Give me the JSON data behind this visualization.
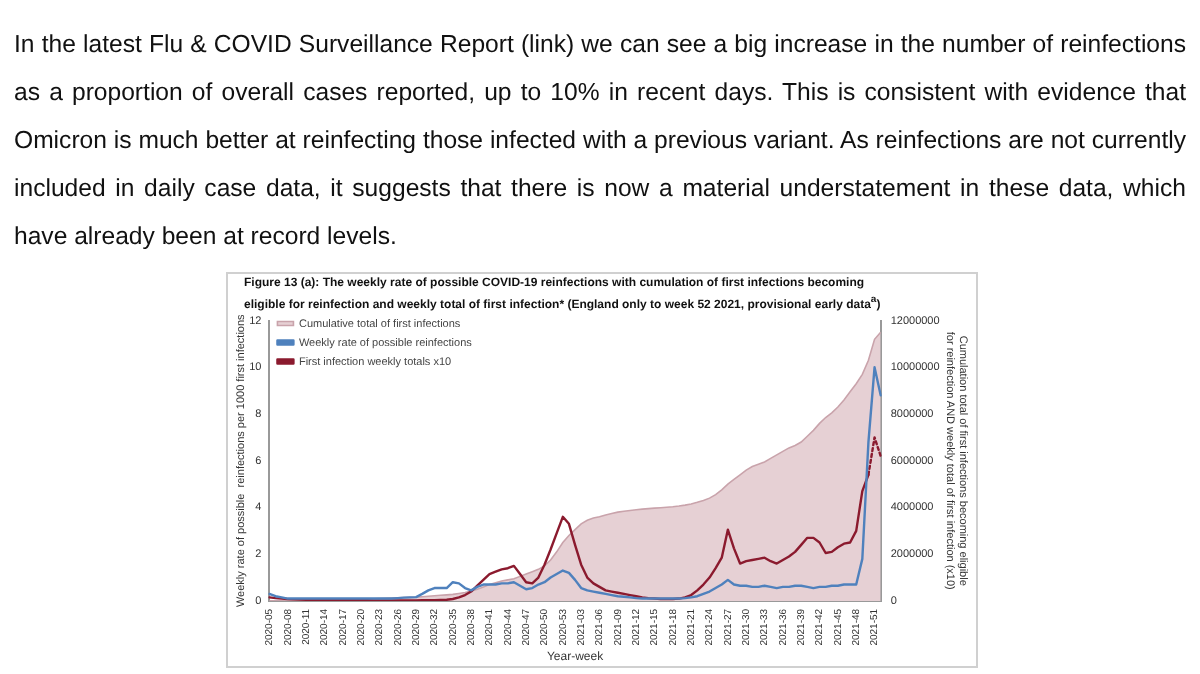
{
  "chart_data": {
    "type": "line",
    "title": "Figure 13 (a): The weekly rate of possible COVID-19 reinfections with cumulation of first infections becoming eligible for reinfection and weekly total of first infection* (England only to week 52 2021, provisional early data$^{a}$)",
    "annotations": [
      "In the latest Flu & COVID Surveillance Report (link) we can see a big increase in the number of reinfections as a proportion of overall cases reported, up to 10% in recent days. This is consistent with evidence that Omicron is much better at reinfecting those infected with a previous variant. As reinfections are not currently included in daily case data, it suggests that there is now a material understatement in these data, which have already been at record levels."
    ],
    "xlabel": "Year-week",
    "ylabel": "Weekly rate of possible  reinfections per 1000 first infections",
    "y2label": "Cumulation total of first infections becoming eligible for reinfection AND weekly total of first infection (x10)",
    "categories": [
      "2020-05",
      null,
      null,
      "2020-08",
      null,
      null,
      "2020-11",
      null,
      null,
      "2020-14",
      null,
      null,
      "2020-17",
      null,
      null,
      "2020-20",
      null,
      null,
      "2020-23",
      null,
      null,
      "2020-26",
      null,
      null,
      "2020-29",
      null,
      null,
      "2020-32",
      null,
      null,
      "2020-35",
      null,
      null,
      "2020-38",
      null,
      null,
      "2020-41",
      null,
      null,
      "2020-44",
      null,
      null,
      "2020-47",
      null,
      null,
      "2020-50",
      null,
      null,
      "2020-53",
      null,
      null,
      "2021-03",
      null,
      null,
      "2021-06",
      null,
      null,
      "2021-09",
      null,
      null,
      "2021-12",
      null,
      null,
      "2021-15",
      null,
      null,
      "2021-18",
      null,
      null,
      "2021-21",
      null,
      null,
      "2021-24",
      null,
      null,
      "2021-27",
      null,
      null,
      "2021-30",
      null,
      null,
      "2021-33",
      null,
      null,
      "2021-36",
      null,
      null,
      "2021-39",
      null,
      null,
      "2021-42",
      null,
      null,
      "2021-45",
      null,
      null,
      "2021-48",
      null,
      null,
      "2021-51",
      null
    ],
    "series": [
      {
        "name": "Cumulative total of first infections",
        "type": "area",
        "axis": "y2",
        "color": "#e6d0d4",
        "values": [
          0,
          5000,
          10000,
          15000,
          20000,
          25000,
          30000,
          35000,
          40000,
          45000,
          50000,
          55000,
          60000,
          65000,
          70000,
          75000,
          80000,
          90000,
          100000,
          110000,
          120000,
          130000,
          140000,
          150000,
          160000,
          180000,
          200000,
          220000,
          240000,
          260000,
          280000,
          320000,
          360000,
          420000,
          500000,
          600000,
          700000,
          780000,
          850000,
          900000,
          950000,
          1050000,
          1150000,
          1250000,
          1350000,
          1500000,
          1750000,
          2100000,
          2500000,
          2800000,
          3050000,
          3300000,
          3450000,
          3550000,
          3600000,
          3680000,
          3740000,
          3800000,
          3840000,
          3870000,
          3900000,
          3930000,
          3950000,
          3970000,
          3990000,
          4010000,
          4030000,
          4060000,
          4100000,
          4150000,
          4220000,
          4300000,
          4400000,
          4550000,
          4750000,
          5000000,
          5200000,
          5400000,
          5600000,
          5750000,
          5850000,
          5950000,
          6100000,
          6250000,
          6400000,
          6550000,
          6650000,
          6800000,
          7050000,
          7300000,
          7600000,
          7850000,
          8050000,
          8300000,
          8600000,
          8950000,
          9300000,
          9700000,
          10300000,
          11200000,
          11500000
        ]
      },
      {
        "name": "Weekly rate of possible reinfections",
        "axis": "y",
        "color": "#4f81bd",
        "values": [
          0.3,
          0.2,
          0.15,
          0.1,
          0.1,
          0.1,
          0.1,
          0.1,
          0.1,
          0.1,
          0.1,
          0.1,
          0.1,
          0.1,
          0.1,
          0.1,
          0.1,
          0.1,
          0.1,
          0.1,
          0.1,
          0.12,
          0.14,
          0.15,
          0.16,
          0.3,
          0.45,
          0.55,
          0.55,
          0.55,
          0.8,
          0.75,
          0.55,
          0.45,
          0.6,
          0.7,
          0.7,
          0.7,
          0.75,
          0.75,
          0.8,
          0.65,
          0.5,
          0.55,
          0.7,
          0.8,
          1.0,
          1.15,
          1.3,
          1.2,
          0.9,
          0.55,
          0.45,
          0.4,
          0.35,
          0.3,
          0.25,
          0.2,
          0.18,
          0.15,
          0.12,
          0.1,
          0.1,
          0.1,
          0.1,
          0.1,
          0.1,
          0.1,
          0.12,
          0.15,
          0.2,
          0.3,
          0.4,
          0.55,
          0.7,
          0.9,
          0.7,
          0.65,
          0.65,
          0.6,
          0.6,
          0.65,
          0.6,
          0.55,
          0.6,
          0.6,
          0.65,
          0.65,
          0.6,
          0.55,
          0.6,
          0.6,
          0.65,
          0.65,
          0.7,
          0.7,
          0.7,
          1.8,
          6.8,
          10,
          8.8
        ]
      },
      {
        "name": "First infection weekly totals x10",
        "axis": "y2",
        "color": "#8b1a2e",
        "values": [
          150000,
          120000,
          100000,
          80000,
          70000,
          60000,
          50000,
          50000,
          40000,
          40000,
          40000,
          30000,
          30000,
          30000,
          30000,
          30000,
          30000,
          20000,
          20000,
          20000,
          20000,
          20000,
          20000,
          20000,
          20000,
          30000,
          30000,
          30000,
          40000,
          50000,
          80000,
          150000,
          250000,
          400000,
          650000,
          900000,
          1150000,
          1250000,
          1350000,
          1400000,
          1500000,
          1150000,
          800000,
          750000,
          1000000,
          1550000,
          2200000,
          2900000,
          3600000,
          3300000,
          2400000,
          1550000,
          1000000,
          750000,
          600000,
          450000,
          400000,
          350000,
          300000,
          250000,
          200000,
          150000,
          120000,
          100000,
          80000,
          80000,
          80000,
          100000,
          150000,
          250000,
          450000,
          700000,
          1000000,
          1400000,
          1850000,
          3050000,
          2250000,
          1600000,
          1700000,
          1750000,
          1800000,
          1850000,
          1700000,
          1600000,
          1750000,
          1900000,
          2100000,
          2400000,
          2700000,
          2700000,
          2500000,
          2050000,
          2100000,
          2300000,
          2450000,
          2500000,
          3000000,
          4700000,
          5400000,
          null,
          null
        ]
      },
      {
        "axis": "y2",
        "color": "#8b1a2e",
        "line_style": "dotted",
        "values": [
          null,
          null,
          null,
          null,
          null,
          null,
          null,
          null,
          null,
          null,
          null,
          null,
          null,
          null,
          null,
          null,
          null,
          null,
          null,
          null,
          null,
          null,
          null,
          null,
          null,
          null,
          null,
          null,
          null,
          null,
          null,
          null,
          null,
          null,
          null,
          null,
          null,
          null,
          null,
          null,
          null,
          null,
          null,
          null,
          null,
          null,
          null,
          null,
          null,
          null,
          null,
          null,
          null,
          null,
          null,
          null,
          null,
          null,
          null,
          null,
          null,
          null,
          null,
          null,
          null,
          null,
          null,
          null,
          null,
          null,
          null,
          null,
          null,
          null,
          null,
          null,
          null,
          null,
          null,
          null,
          null,
          null,
          null,
          null,
          null,
          null,
          null,
          null,
          null,
          null,
          null,
          null,
          null,
          null,
          null,
          null,
          null,
          null,
          5400000,
          7000000,
          6200000
        ]
      }
    ],
    "ylim": [
      0,
      12
    ],
    "yticks": [
      0,
      2,
      4,
      6,
      8,
      10,
      12
    ],
    "y2lim": [
      0,
      12000000
    ],
    "y2ticks": [
      0,
      2000000,
      4000000,
      6000000,
      8000000,
      10000000,
      12000000
    ],
    "legend": "top left",
    "marker": "none",
    "line_style": "solid"
  }
}
